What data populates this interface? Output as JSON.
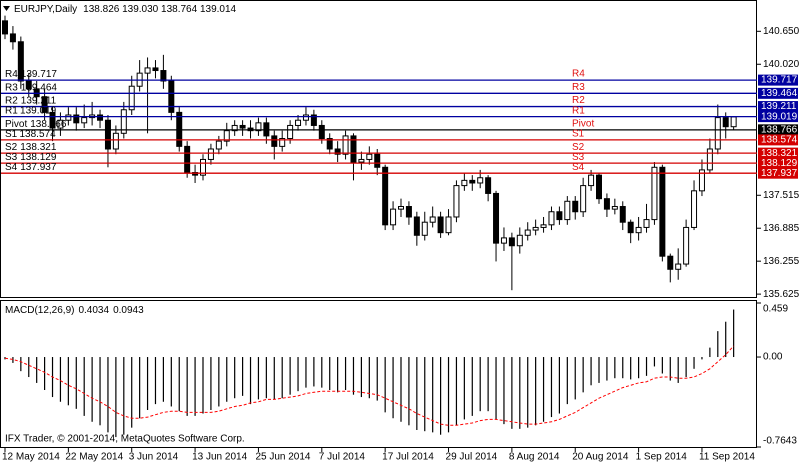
{
  "chart_data": [
    {
      "type": "candlestick",
      "title": "EURJPY,Daily",
      "quote": "138.826 139.030 138.764 139.014",
      "categories": [
        "12 May 2014",
        null,
        null,
        null,
        null,
        null,
        null,
        null,
        "22 May 2014",
        null,
        null,
        null,
        null,
        null,
        null,
        null,
        "3 Jun 2014",
        null,
        null,
        null,
        null,
        null,
        null,
        null,
        "13 Jun 2014",
        null,
        null,
        null,
        null,
        null,
        null,
        null,
        "25 Jun 2014",
        null,
        null,
        null,
        null,
        null,
        null,
        null,
        "7 Jul 2014",
        null,
        null,
        null,
        null,
        null,
        null,
        null,
        "17 Jul 2014",
        null,
        null,
        null,
        null,
        null,
        null,
        null,
        "29 Jul 2014",
        null,
        null,
        null,
        null,
        null,
        null,
        null,
        "8 Aug 2014",
        null,
        null,
        null,
        null,
        null,
        null,
        null,
        "20 Aug 2014",
        null,
        null,
        null,
        null,
        null,
        null,
        null,
        "1 Sep 2014",
        null,
        null,
        null,
        null,
        null,
        null,
        null,
        "11 Sep 2014",
        null,
        null,
        null,
        null
      ],
      "open": [
        140.85,
        140.6,
        140.45,
        139.7,
        139.55,
        139.4,
        139.1,
        138.8,
        138.95,
        139.05,
        138.9,
        139.0,
        139.05,
        138.95,
        138.4,
        138.7,
        139.15,
        139.6,
        139.85,
        139.95,
        139.9,
        139.7,
        139.1,
        138.45,
        137.95,
        137.9,
        138.2,
        138.4,
        138.55,
        138.75,
        138.85,
        138.8,
        138.75,
        138.9,
        138.65,
        138.45,
        138.6,
        138.85,
        138.95,
        139.05,
        138.85,
        138.6,
        138.4,
        138.3,
        138.65,
        138.15,
        138.2,
        138.3,
        138.05,
        136.95,
        137.25,
        137.3,
        137.1,
        136.75,
        137.0,
        137.1,
        136.8,
        137.1,
        137.7,
        137.8,
        137.75,
        137.85,
        137.55,
        136.6,
        136.7,
        136.55,
        136.75,
        136.85,
        136.9,
        136.95,
        137.2,
        137.05,
        137.4,
        137.2,
        137.7,
        137.9,
        137.45,
        137.25,
        137.3,
        137.0,
        136.8,
        136.9,
        137.05,
        138.05,
        136.35,
        136.1,
        136.2,
        136.9,
        137.6,
        138.0,
        138.4,
        139.0,
        138.826
      ],
      "high": [
        140.95,
        140.75,
        140.55,
        139.85,
        139.7,
        139.55,
        139.2,
        139.1,
        139.2,
        139.2,
        139.25,
        139.3,
        139.15,
        139.05,
        138.85,
        139.3,
        139.8,
        140.1,
        140.15,
        140.1,
        140.2,
        139.8,
        139.2,
        138.55,
        138.1,
        138.3,
        138.5,
        138.65,
        138.9,
        138.95,
        138.95,
        138.95,
        139.0,
        139.0,
        138.75,
        138.75,
        138.95,
        139.05,
        139.2,
        139.15,
        138.95,
        138.7,
        138.55,
        138.75,
        138.7,
        138.35,
        138.45,
        138.4,
        138.1,
        137.4,
        137.45,
        137.4,
        137.2,
        137.2,
        137.3,
        137.2,
        137.25,
        137.8,
        137.95,
        137.9,
        138.0,
        137.9,
        137.6,
        136.9,
        136.8,
        136.9,
        137.0,
        137.05,
        137.1,
        137.3,
        137.3,
        137.5,
        137.5,
        137.85,
        138.0,
        137.95,
        137.55,
        137.45,
        137.4,
        137.05,
        137.1,
        137.35,
        138.15,
        138.1,
        136.4,
        136.5,
        137.05,
        137.8,
        138.2,
        138.6,
        139.25,
        139.1,
        139.03
      ],
      "low": [
        140.5,
        140.3,
        139.55,
        139.4,
        139.25,
        138.95,
        138.55,
        138.65,
        138.85,
        138.75,
        138.8,
        138.85,
        138.8,
        138.05,
        138.3,
        138.6,
        139.05,
        139.5,
        138.7,
        139.75,
        139.55,
        138.95,
        138.35,
        137.85,
        137.75,
        137.8,
        138.1,
        138.3,
        138.45,
        138.65,
        138.65,
        138.6,
        138.65,
        138.5,
        138.2,
        138.35,
        138.5,
        138.75,
        138.85,
        138.75,
        138.5,
        138.3,
        138.15,
        138.2,
        137.8,
        138.0,
        138.1,
        137.9,
        136.85,
        136.85,
        137.1,
        136.95,
        136.55,
        136.65,
        136.9,
        136.7,
        136.75,
        137.0,
        137.6,
        137.6,
        137.65,
        137.4,
        136.25,
        136.45,
        135.7,
        136.4,
        136.65,
        136.75,
        136.8,
        136.85,
        136.95,
        136.95,
        137.05,
        137.1,
        137.6,
        137.35,
        137.1,
        137.15,
        136.85,
        136.6,
        136.65,
        136.8,
        136.95,
        136.25,
        135.85,
        135.9,
        136.15,
        136.85,
        137.5,
        137.95,
        138.3,
        138.6,
        138.764
      ],
      "close": [
        140.6,
        140.45,
        139.7,
        139.55,
        139.4,
        139.1,
        138.8,
        138.95,
        139.05,
        138.9,
        139.0,
        139.05,
        138.95,
        138.4,
        138.7,
        139.15,
        139.6,
        139.85,
        139.95,
        139.9,
        139.7,
        139.1,
        138.45,
        137.95,
        137.9,
        138.2,
        138.4,
        138.55,
        138.75,
        138.85,
        138.8,
        138.75,
        138.9,
        138.65,
        138.45,
        138.6,
        138.85,
        138.95,
        139.05,
        138.85,
        138.6,
        138.4,
        138.3,
        138.65,
        138.15,
        138.2,
        138.3,
        138.05,
        136.95,
        137.25,
        137.3,
        137.1,
        136.75,
        137.0,
        137.1,
        136.8,
        137.1,
        137.7,
        137.8,
        137.75,
        137.85,
        137.55,
        136.6,
        136.7,
        136.55,
        136.75,
        136.85,
        136.9,
        136.95,
        137.2,
        137.05,
        137.4,
        137.2,
        137.7,
        137.9,
        137.45,
        137.25,
        137.3,
        137.0,
        136.8,
        136.9,
        137.05,
        138.05,
        136.35,
        136.1,
        136.2,
        136.9,
        137.6,
        138.0,
        138.4,
        139.0,
        138.826,
        139.014
      ],
      "up_color": "#ffffff",
      "down_color": "#000000",
      "ylim": [
        135.57,
        141.0
      ],
      "yticks": [
        {
          "value": 140.65,
          "label": "140.650"
        },
        {
          "value": 140.02,
          "label": "140.020"
        },
        137.515,
        136.885,
        136.255,
        135.625
      ],
      "label_color": "#e01010",
      "levels": [
        {
          "name": "R4",
          "value": 139.717,
          "color": "#0000a0"
        },
        {
          "name": "R3",
          "value": 139.464,
          "color": "#0000a0"
        },
        {
          "name": "R2",
          "value": 139.211,
          "color": "#0000a0"
        },
        {
          "name": "R1",
          "value": 139.019,
          "color": "#0000a0"
        },
        {
          "name": "Pivot",
          "value": 138.766,
          "color": "#000000"
        },
        {
          "name": "S1",
          "value": 138.574,
          "color": "#d40000"
        },
        {
          "name": "S2",
          "value": 138.321,
          "color": "#d40000"
        },
        {
          "name": "S3",
          "value": 138.129,
          "color": "#d40000"
        },
        {
          "name": "S4",
          "value": 137.937,
          "color": "#d40000"
        }
      ]
    },
    {
      "type": "macd",
      "title": "MACD(12,26,9)",
      "footer": "IFX Trader, © 2001-2014, MetaQuotes Software Corp.",
      "series": [
        {
          "type": "bar",
          "color": "#000000",
          "values": [
            -0.02,
            -0.05,
            -0.12,
            -0.17,
            -0.22,
            -0.28,
            -0.34,
            -0.38,
            -0.41,
            -0.44,
            -0.5,
            -0.55,
            -0.58,
            -0.64,
            -0.68,
            -0.66,
            -0.6,
            -0.52,
            -0.45,
            -0.4,
            -0.38,
            -0.42,
            -0.46,
            -0.5,
            -0.5,
            -0.48,
            -0.45,
            -0.42,
            -0.38,
            -0.35,
            -0.33,
            -0.4,
            -0.36,
            -0.35,
            -0.36,
            -0.35,
            -0.32,
            -0.29,
            -0.26,
            -0.25,
            -0.26,
            -0.28,
            -0.3,
            -0.28,
            -0.32,
            -0.34,
            -0.35,
            -0.37,
            -0.47,
            -0.52,
            -0.55,
            -0.58,
            -0.62,
            -0.63,
            -0.64,
            -0.66,
            -0.64,
            -0.58,
            -0.53,
            -0.5,
            -0.46,
            -0.46,
            -0.53,
            -0.57,
            -0.61,
            -0.61,
            -0.6,
            -0.58,
            -0.55,
            -0.51,
            -0.48,
            -0.4,
            -0.36,
            -0.3,
            -0.24,
            -0.22,
            -0.2,
            -0.18,
            -0.18,
            -0.19,
            -0.18,
            -0.16,
            -0.08,
            -0.14,
            -0.2,
            -0.22,
            -0.17,
            -0.1,
            -0.02,
            0.08,
            0.22,
            0.3,
            0.4034
          ]
        },
        {
          "type": "line",
          "color": "#ff0000",
          "dashed": true,
          "values": [
            -0.01,
            -0.02,
            -0.04,
            -0.07,
            -0.1,
            -0.13,
            -0.17,
            -0.2,
            -0.24,
            -0.27,
            -0.31,
            -0.35,
            -0.38,
            -0.42,
            -0.47,
            -0.5,
            -0.52,
            -0.52,
            -0.51,
            -0.49,
            -0.47,
            -0.46,
            -0.46,
            -0.47,
            -0.47,
            -0.47,
            -0.47,
            -0.46,
            -0.44,
            -0.42,
            -0.41,
            -0.39,
            -0.38,
            -0.36,
            -0.36,
            -0.35,
            -0.34,
            -0.33,
            -0.31,
            -0.3,
            -0.29,
            -0.29,
            -0.29,
            -0.29,
            -0.29,
            -0.3,
            -0.31,
            -0.32,
            -0.35,
            -0.38,
            -0.41,
            -0.44,
            -0.48,
            -0.51,
            -0.54,
            -0.57,
            -0.58,
            -0.58,
            -0.57,
            -0.56,
            -0.54,
            -0.53,
            -0.53,
            -0.54,
            -0.55,
            -0.56,
            -0.57,
            -0.57,
            -0.56,
            -0.55,
            -0.53,
            -0.5,
            -0.47,
            -0.43,
            -0.39,
            -0.35,
            -0.32,
            -0.29,
            -0.26,
            -0.24,
            -0.22,
            -0.21,
            -0.18,
            -0.17,
            -0.17,
            -0.18,
            -0.18,
            -0.17,
            -0.14,
            -0.1,
            -0.04,
            0.02,
            0.0943
          ]
        }
      ],
      "ylim": [
        -0.7643,
        0.459
      ],
      "yticks": [
        0.459,
        {
          "value": 0,
          "label": "0.00"
        },
        -0.7643
      ]
    }
  ]
}
